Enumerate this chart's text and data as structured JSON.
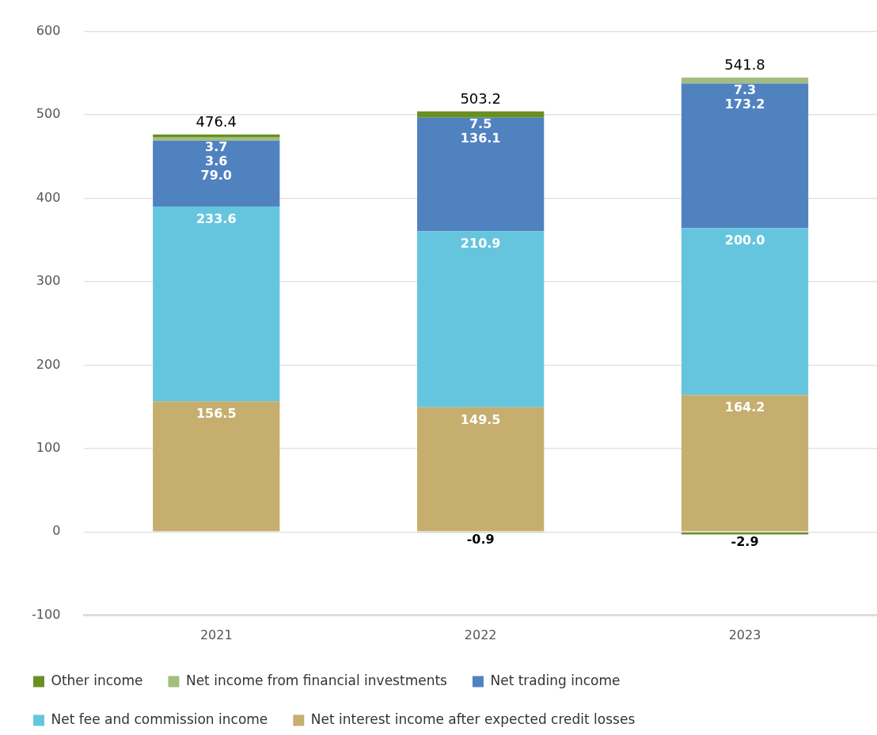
{
  "chart_data": {
    "type": "bar",
    "stacked": true,
    "categories": [
      "2021",
      "2022",
      "2023"
    ],
    "series": [
      {
        "name": "Net interest income after expected credit losses",
        "color": "#c6ae6f",
        "values": [
          156.5,
          149.5,
          164.2
        ],
        "value_labels": [
          "156.5",
          "149.5",
          "164.2"
        ]
      },
      {
        "name": "Net fee and commission income",
        "color": "#66c5de",
        "values": [
          233.6,
          210.9,
          200.0
        ],
        "value_labels": [
          "233.6",
          "210.9",
          "200.0"
        ]
      },
      {
        "name": "Net trading income",
        "color": "#5082c0",
        "values": [
          79.0,
          136.1,
          173.2
        ],
        "value_labels": [
          "79.0",
          "136.1",
          "173.2"
        ]
      },
      {
        "name": "Net income from financial investments",
        "color": "#a3bd7f",
        "values": [
          3.6,
          -0.9,
          7.3
        ],
        "value_labels": [
          "3.6",
          "-0.9",
          "7.3"
        ]
      },
      {
        "name": "Other income",
        "color": "#6a9023",
        "values": [
          3.7,
          7.5,
          -2.9
        ],
        "value_labels": [
          "3.7",
          "7.5",
          "-2.9"
        ]
      }
    ],
    "totals": [
      "476.4",
      "503.2",
      "541.8"
    ],
    "ylim": [
      -100,
      600
    ],
    "yticks": [
      -100,
      0,
      100,
      200,
      300,
      400,
      500,
      600
    ],
    "grid": "y",
    "legend": "bottom"
  }
}
